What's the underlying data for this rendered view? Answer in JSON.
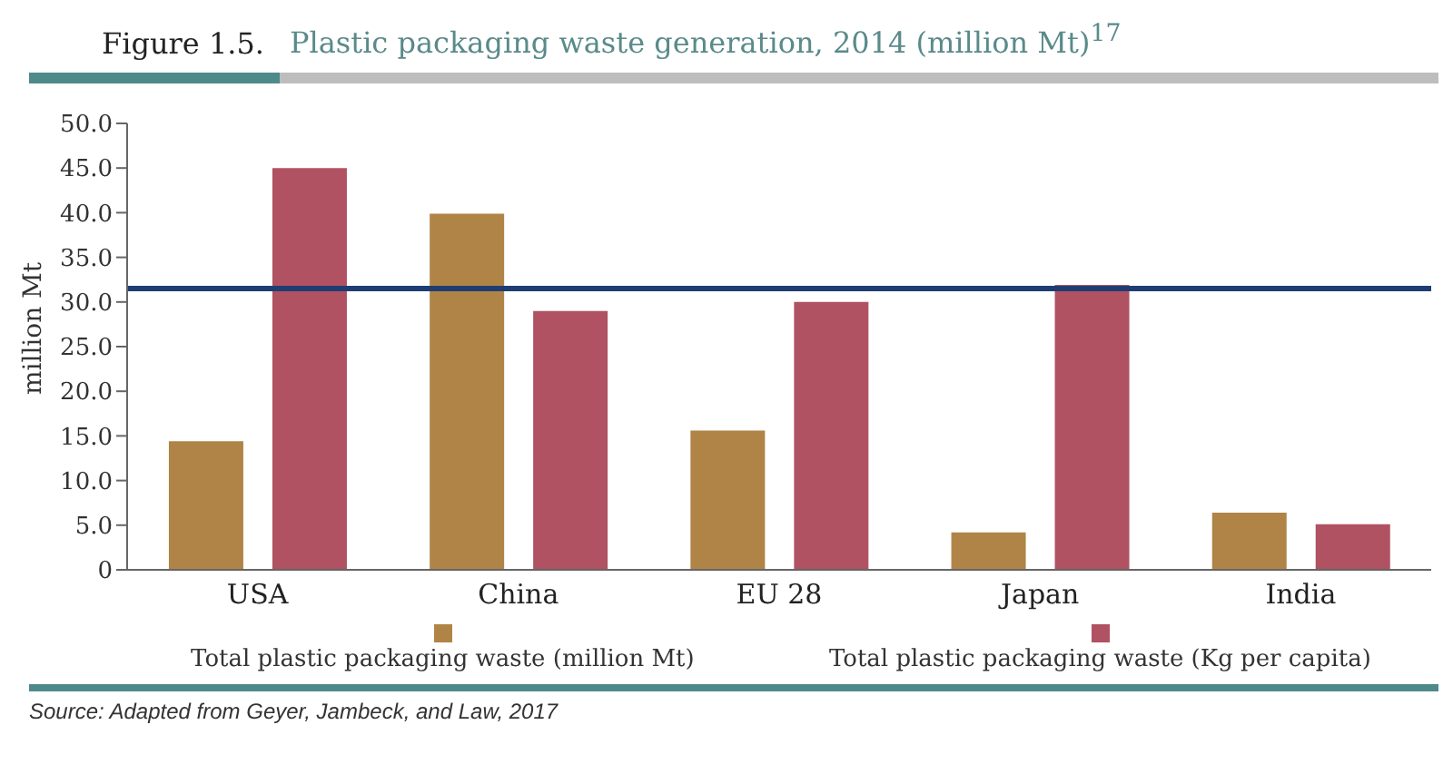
{
  "chart_data": {
    "type": "bar",
    "title": "Figure 1.5.",
    "subtitle": "Plastic packaging waste generation, 2014 (million Mt)$^{17}$",
    "ylabel": "million Mt",
    "categories": [
      "USA",
      "China",
      "EU 28",
      "Japan",
      "India"
    ],
    "series": [
      {
        "name": "Total plastic packaging waste (million Mt)",
        "color": "#b08447",
        "values": [
          14.4,
          39.9,
          15.6,
          4.2,
          6.4
        ]
      },
      {
        "name": "Total plastic packaging waste (Kg per capita)",
        "color": "#b05262",
        "values": [
          45.0,
          29.0,
          30.0,
          31.9,
          5.1
        ]
      }
    ],
    "ylim": [
      0,
      50
    ],
    "yticks": [
      0,
      {
        "value": 5,
        "label": "5.0"
      },
      {
        "value": 10,
        "label": "10.0"
      },
      {
        "value": 15,
        "label": "15.0"
      },
      {
        "value": 20,
        "label": "20.0"
      },
      {
        "value": 25,
        "label": "25.0"
      },
      {
        "value": 30,
        "label": "30.0"
      },
      {
        "value": 35,
        "label": "35.0"
      },
      {
        "value": 40,
        "label": "40.0"
      },
      {
        "value": 45,
        "label": "45.0"
      },
      {
        "value": 50,
        "label": "50.0"
      }
    ],
    "ref_lines": [
      {
        "axis": "y",
        "value": 31.5,
        "color": "#1f3d73"
      }
    ],
    "legend": "bottom",
    "grid": false,
    "annotations": [
      "Source:  Adapted from Geyer, Jambeck, and Law, 2017"
    ]
  }
}
